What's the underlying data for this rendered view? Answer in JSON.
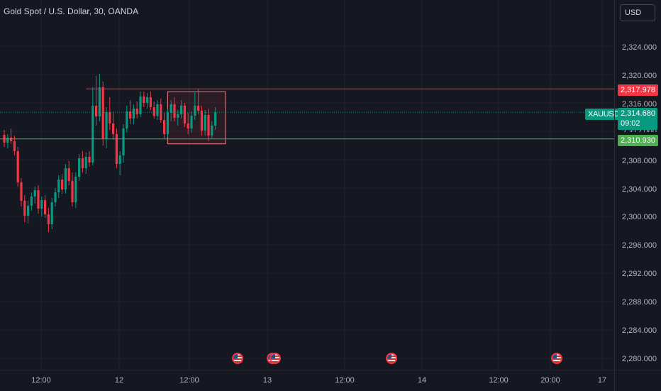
{
  "chart": {
    "title": "Gold Spot / U.S. Dollar, 30, OANDA",
    "currency": "USD",
    "symbol": "XAUUSD",
    "last_price": "2,314.680",
    "countdown": "09:02",
    "resistance_price": "2,317.978",
    "support_price": "2,310.930",
    "overlap_price_label": "2,312.000",
    "colors": {
      "background": "#151821",
      "up": "#089981",
      "down": "#f23645",
      "resistance": "#f23645",
      "support": "#4caf50",
      "grid": "#1f2330",
      "rect": "#f77c80"
    }
  },
  "price_axis": {
    "labels": [
      "2,324.000",
      "2,320.000",
      "2,316.000",
      "2,308.000",
      "2,304.000",
      "2,300.000",
      "2,296.000",
      "2,292.000",
      "2,288.000",
      "2,284.000",
      "2,280.000"
    ]
  },
  "time_axis": {
    "labels": [
      "12:00",
      "12",
      "12:00",
      "13",
      "12:00",
      "14",
      "12:00",
      "20:00",
      "17"
    ]
  },
  "events": [
    "us-flag-icon",
    "us-flag-icon",
    "us-flag-icon",
    "us-flag-icon"
  ],
  "chart_data": {
    "type": "candlestick",
    "title": "Gold Spot / U.S. Dollar, 30, OANDA",
    "y_range": [
      2278.5,
      2327.5
    ],
    "ohlc": [
      [
        2311.5,
        2312.2,
        2309.8,
        2310.4
      ],
      [
        2310.4,
        2311.6,
        2309.6,
        2311.1
      ],
      [
        2311.1,
        2312.4,
        2310.2,
        2310.6
      ],
      [
        2310.6,
        2311.4,
        2308.6,
        2309.2
      ],
      [
        2309.2,
        2309.8,
        2304.2,
        2304.8
      ],
      [
        2304.8,
        2305.4,
        2301.4,
        2302.2
      ],
      [
        2302.2,
        2303.0,
        2299.2,
        2300.1
      ],
      [
        2300.1,
        2302.2,
        2299.0,
        2301.5
      ],
      [
        2301.5,
        2303.4,
        2300.8,
        2302.8
      ],
      [
        2302.8,
        2304.2,
        2301.8,
        2303.7
      ],
      [
        2303.7,
        2304.4,
        2300.4,
        2301.1
      ],
      [
        2301.1,
        2302.8,
        2300.0,
        2302.3
      ],
      [
        2302.3,
        2303.0,
        2299.8,
        2300.3
      ],
      [
        2300.3,
        2301.2,
        2297.8,
        2298.9
      ],
      [
        2298.9,
        2302.6,
        2298.2,
        2302.0
      ],
      [
        2302.0,
        2304.0,
        2301.4,
        2303.4
      ],
      [
        2303.4,
        2305.8,
        2302.6,
        2305.2
      ],
      [
        2305.2,
        2306.0,
        2303.2,
        2303.8
      ],
      [
        2303.8,
        2307.4,
        2303.2,
        2306.8
      ],
      [
        2306.8,
        2307.8,
        2304.4,
        2305.0
      ],
      [
        2305.0,
        2306.2,
        2301.4,
        2302.0
      ],
      [
        2302.0,
        2306.2,
        2301.2,
        2305.6
      ],
      [
        2305.6,
        2308.8,
        2305.0,
        2308.2
      ],
      [
        2308.2,
        2309.2,
        2306.2,
        2306.8
      ],
      [
        2306.8,
        2309.0,
        2306.0,
        2308.4
      ],
      [
        2308.4,
        2309.2,
        2307.0,
        2307.6
      ],
      [
        2307.6,
        2318.2,
        2307.2,
        2315.6
      ],
      [
        2315.6,
        2319.8,
        2312.8,
        2314.1
      ],
      [
        2314.1,
        2320.1,
        2313.4,
        2318.2
      ],
      [
        2318.2,
        2319.0,
        2310.0,
        2311.0
      ],
      [
        2311.0,
        2315.4,
        2309.6,
        2314.7
      ],
      [
        2314.7,
        2316.8,
        2312.2,
        2313.1
      ],
      [
        2313.1,
        2314.8,
        2310.8,
        2311.6
      ],
      [
        2311.6,
        2312.4,
        2306.8,
        2307.4
      ],
      [
        2307.4,
        2309.2,
        2305.8,
        2308.6
      ],
      [
        2308.6,
        2313.0,
        2307.6,
        2312.4
      ],
      [
        2312.4,
        2315.6,
        2311.8,
        2314.8
      ],
      [
        2314.8,
        2316.4,
        2313.0,
        2313.8
      ],
      [
        2313.8,
        2315.8,
        2313.0,
        2315.2
      ],
      [
        2315.2,
        2316.2,
        2313.8,
        2314.4
      ],
      [
        2314.4,
        2317.6,
        2314.0,
        2316.9
      ],
      [
        2316.9,
        2317.6,
        2315.4,
        2316.0
      ],
      [
        2316.0,
        2317.4,
        2315.2,
        2316.8
      ],
      [
        2316.8,
        2317.6,
        2315.0,
        2315.4
      ],
      [
        2315.4,
        2316.2,
        2313.8,
        2314.2
      ],
      [
        2314.2,
        2316.4,
        2313.6,
        2315.8
      ],
      [
        2315.8,
        2316.6,
        2313.2,
        2313.6
      ],
      [
        2313.6,
        2314.6,
        2311.0,
        2311.6
      ],
      [
        2311.6,
        2315.2,
        2311.2,
        2314.6
      ],
      [
        2314.6,
        2316.4,
        2313.4,
        2315.8
      ],
      [
        2315.8,
        2316.8,
        2313.4,
        2313.9
      ],
      [
        2313.9,
        2315.0,
        2312.8,
        2314.4
      ],
      [
        2314.4,
        2316.4,
        2313.8,
        2315.6
      ],
      [
        2315.6,
        2316.0,
        2312.6,
        2313.1
      ],
      [
        2313.1,
        2314.6,
        2311.6,
        2312.4
      ],
      [
        2312.4,
        2314.8,
        2311.8,
        2314.2
      ],
      [
        2314.2,
        2317.6,
        2313.6,
        2315.6
      ],
      [
        2315.6,
        2318.0,
        2314.4,
        2314.9
      ],
      [
        2314.9,
        2315.6,
        2311.4,
        2312.1
      ],
      [
        2312.1,
        2315.0,
        2311.4,
        2314.3
      ],
      [
        2314.3,
        2315.2,
        2310.6,
        2311.4
      ],
      [
        2311.4,
        2313.4,
        2311.0,
        2312.8
      ],
      [
        2312.8,
        2315.4,
        2312.2,
        2314.7
      ]
    ],
    "resistance": 2317.978,
    "support": 2310.93,
    "last": 2314.68,
    "zone": {
      "x_start_index": 43,
      "x_end_index": 55,
      "top": 2317.978,
      "bottom": 2310.93
    }
  }
}
